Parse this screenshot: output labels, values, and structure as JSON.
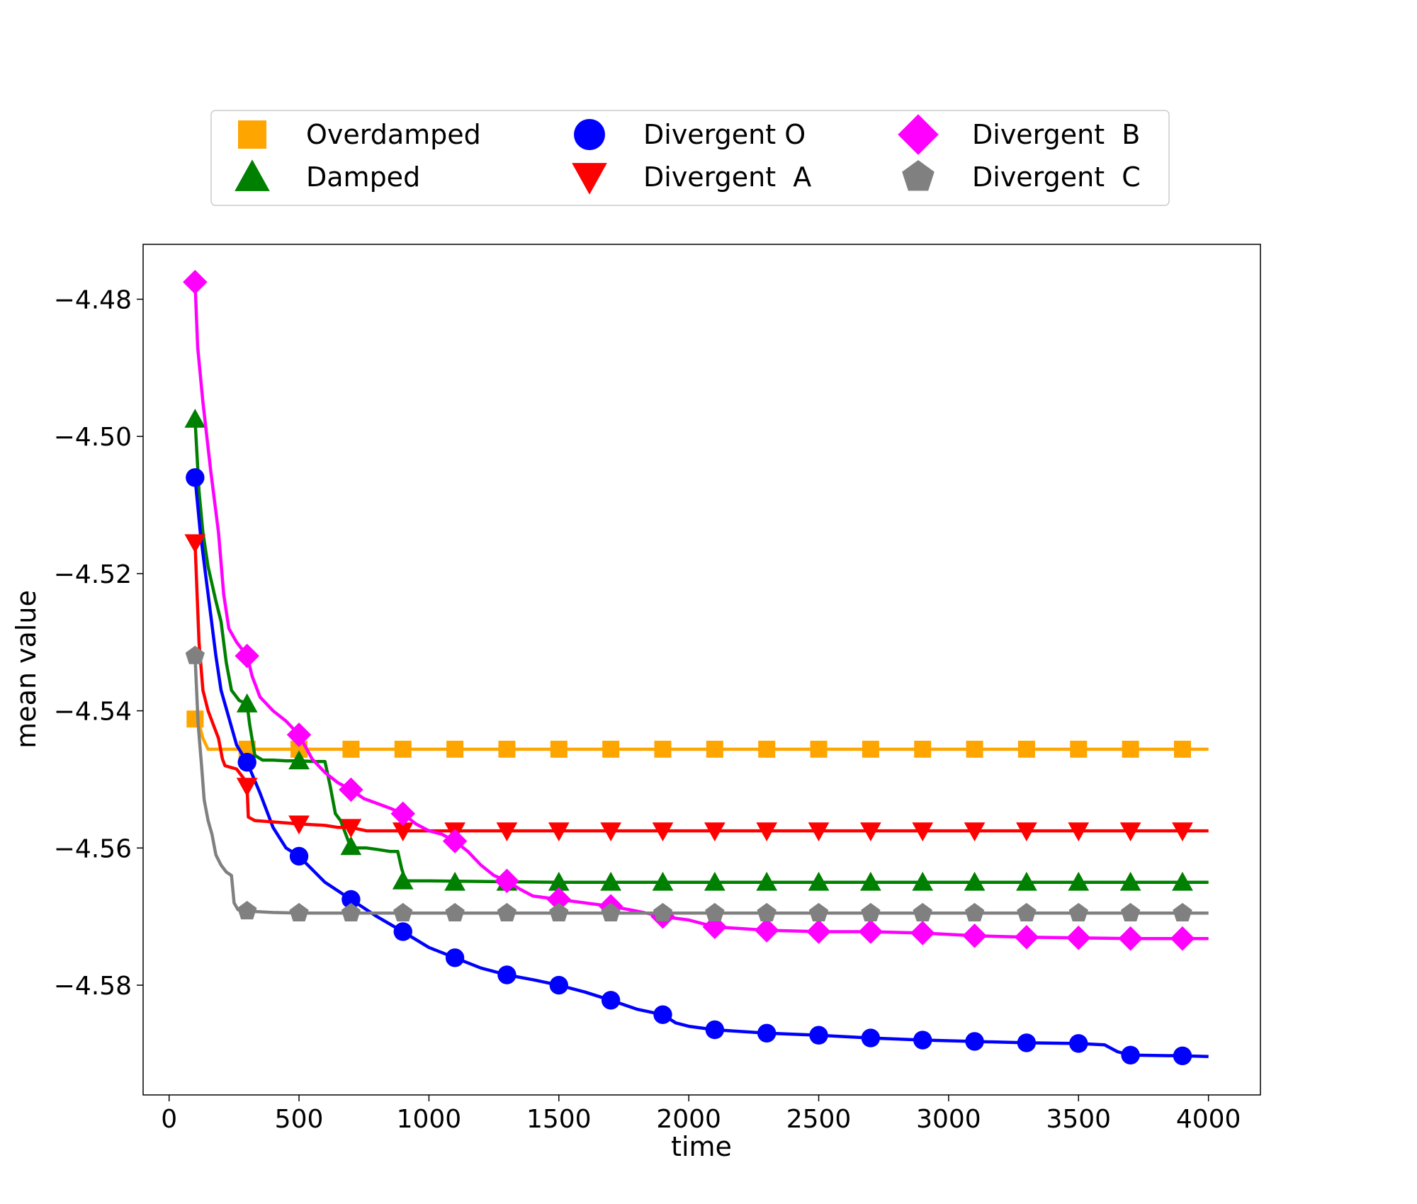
{
  "chart_data": {
    "type": "line",
    "title": "",
    "xlabel": "time",
    "ylabel": "mean value",
    "xlim": [
      -100,
      4200
    ],
    "ylim": [
      -4.596,
      -4.472
    ],
    "xticks": [
      0,
      500,
      1000,
      1500,
      2000,
      2500,
      3000,
      3500,
      4000
    ],
    "xtick_labels": [
      "0",
      "500",
      "1000",
      "1500",
      "2000",
      "2500",
      "3000",
      "3500",
      "4000"
    ],
    "yticks": [
      -4.48,
      -4.5,
      -4.52,
      -4.54,
      -4.56,
      -4.58
    ],
    "ytick_labels": [
      "−4.48",
      "−4.50",
      "−4.52",
      "−4.54",
      "−4.56",
      "−4.58"
    ],
    "grid": false,
    "legend_position": "top-center",
    "marker_x": [
      100,
      300,
      500,
      700,
      900,
      1100,
      1300,
      1500,
      1700,
      1900,
      2100,
      2300,
      2500,
      2700,
      2900,
      3100,
      3300,
      3500,
      3700,
      3900
    ],
    "series": [
      {
        "name": "Overdamped",
        "color": "#FFA500",
        "marker": "square",
        "x": [
          100,
          110,
          130,
          150,
          4000
        ],
        "y": [
          -4.5412,
          -4.5412,
          -4.544,
          -4.5456,
          -4.5456
        ],
        "marker_y": [
          -4.5412,
          -4.5456,
          -4.5456,
          -4.5456,
          -4.5456,
          -4.5456,
          -4.5456,
          -4.5456,
          -4.5456,
          -4.5456,
          -4.5456,
          -4.5456,
          -4.5456,
          -4.5456,
          -4.5456,
          -4.5456,
          -4.5456,
          -4.5456,
          -4.5456,
          -4.5456
        ]
      },
      {
        "name": "Damped",
        "color": "#008000",
        "marker": "triangle-up",
        "x": [
          100,
          115,
          130,
          150,
          180,
          200,
          220,
          240,
          270,
          300,
          310,
          330,
          360,
          400,
          450,
          500,
          560,
          600,
          620,
          640,
          660,
          690,
          700,
          720,
          760,
          800,
          850,
          880,
          895,
          910,
          1000,
          1500,
          2000,
          4000
        ],
        "y": [
          -4.4975,
          -4.508,
          -4.514,
          -4.519,
          -4.524,
          -4.527,
          -4.533,
          -4.537,
          -4.5385,
          -4.539,
          -4.542,
          -4.5465,
          -4.5472,
          -4.5472,
          -4.5473,
          -4.5473,
          -4.5474,
          -4.5474,
          -4.551,
          -4.555,
          -4.556,
          -4.559,
          -4.5598,
          -4.56,
          -4.56,
          -4.5602,
          -4.5605,
          -4.5605,
          -4.563,
          -4.5648,
          -4.5648,
          -4.565,
          -4.565,
          -4.565
        ],
        "marker_y": [
          -4.4975,
          -4.539,
          -4.5473,
          -4.5598,
          -4.5648,
          -4.565,
          -4.565,
          -4.565,
          -4.565,
          -4.565,
          -4.565,
          -4.565,
          -4.565,
          -4.565,
          -4.565,
          -4.565,
          -4.565,
          -4.565,
          -4.565,
          -4.565
        ]
      },
      {
        "name": "Divergent O",
        "color": "#0000FF",
        "marker": "circle",
        "x": [
          100,
          120,
          140,
          160,
          180,
          200,
          230,
          260,
          300,
          350,
          400,
          450,
          500,
          600,
          700,
          800,
          900,
          1000,
          1100,
          1200,
          1300,
          1400,
          1500,
          1600,
          1700,
          1800,
          1900,
          1950,
          2000,
          2100,
          2300,
          2500,
          2700,
          2900,
          3100,
          3300,
          3500,
          3600,
          3650,
          3700,
          3900,
          4000
        ],
        "y": [
          -4.506,
          -4.514,
          -4.52,
          -4.526,
          -4.532,
          -4.537,
          -4.541,
          -4.545,
          -4.5475,
          -4.552,
          -4.557,
          -4.56,
          -4.5612,
          -4.565,
          -4.5675,
          -4.57,
          -4.5722,
          -4.5745,
          -4.576,
          -4.5775,
          -4.5785,
          -4.5792,
          -4.58,
          -4.581,
          -4.5822,
          -4.5835,
          -4.5843,
          -4.5855,
          -4.586,
          -4.5865,
          -4.587,
          -4.5873,
          -4.5877,
          -4.588,
          -4.5882,
          -4.5884,
          -4.5885,
          -4.5887,
          -4.5897,
          -4.5902,
          -4.5903,
          -4.5904
        ],
        "marker_y": [
          -4.506,
          -4.5475,
          -4.5612,
          -4.5675,
          -4.5722,
          -4.576,
          -4.5785,
          -4.58,
          -4.5822,
          -4.5843,
          -4.5865,
          -4.587,
          -4.5873,
          -4.5877,
          -4.588,
          -4.5882,
          -4.5884,
          -4.5885,
          -4.5902,
          -4.5903
        ]
      },
      {
        "name": "Divergent  A",
        "color": "#FF0000",
        "marker": "triangle-down",
        "x": [
          100,
          115,
          130,
          150,
          170,
          190,
          205,
          215,
          260,
          290,
          300,
          305,
          330,
          400,
          500,
          600,
          650,
          700,
          760,
          800,
          900,
          1000,
          2000,
          4000
        ],
        "y": [
          -4.5155,
          -4.53,
          -4.537,
          -4.54,
          -4.542,
          -4.544,
          -4.547,
          -4.548,
          -4.5485,
          -4.55,
          -4.551,
          -4.5555,
          -4.556,
          -4.5562,
          -4.5565,
          -4.5567,
          -4.557,
          -4.557,
          -4.5575,
          -4.5575,
          -4.5575,
          -4.5575,
          -4.5575,
          -4.5575
        ],
        "marker_y": [
          -4.5155,
          -4.551,
          -4.5565,
          -4.557,
          -4.5575,
          -4.5575,
          -4.5575,
          -4.5575,
          -4.5575,
          -4.5575,
          -4.5575,
          -4.5575,
          -4.5575,
          -4.5575,
          -4.5575,
          -4.5575,
          -4.5575,
          -4.5575,
          -4.5575,
          -4.5575
        ]
      },
      {
        "name": "Divergent  B",
        "color": "#FF00FF",
        "marker": "diamond",
        "x": [
          100,
          110,
          130,
          160,
          190,
          210,
          230,
          260,
          300,
          320,
          350,
          400,
          450,
          500,
          550,
          600,
          650,
          700,
          750,
          800,
          850,
          900,
          950,
          1000,
          1050,
          1100,
          1150,
          1200,
          1250,
          1300,
          1350,
          1400,
          1500,
          1600,
          1700,
          1800,
          1900,
          2000,
          2100,
          2300,
          2500,
          2700,
          2900,
          3100,
          3300,
          3500,
          3700,
          3900,
          4000
        ],
        "y": [
          -4.4775,
          -4.487,
          -4.495,
          -4.505,
          -4.514,
          -4.523,
          -4.528,
          -4.53,
          -4.532,
          -4.535,
          -4.538,
          -4.54,
          -4.5415,
          -4.5435,
          -4.547,
          -4.549,
          -4.5505,
          -4.5515,
          -4.5528,
          -4.5535,
          -4.5542,
          -4.555,
          -4.5565,
          -4.5575,
          -4.558,
          -4.559,
          -4.5605,
          -4.5625,
          -4.564,
          -4.5648,
          -4.566,
          -4.567,
          -4.5675,
          -4.568,
          -4.5685,
          -4.5692,
          -4.57,
          -4.5705,
          -4.5715,
          -4.572,
          -4.5722,
          -4.5722,
          -4.5724,
          -4.5728,
          -4.573,
          -4.5731,
          -4.5732,
          -4.5732,
          -4.5732
        ],
        "marker_y": [
          -4.4775,
          -4.532,
          -4.5435,
          -4.5515,
          -4.555,
          -4.559,
          -4.5648,
          -4.5675,
          -4.5685,
          -4.57,
          -4.5715,
          -4.572,
          -4.5722,
          -4.5722,
          -4.5724,
          -4.5728,
          -4.573,
          -4.5731,
          -4.5732,
          -4.5732
        ]
      },
      {
        "name": "Divergent  C",
        "color": "#808080",
        "marker": "pentagon",
        "x": [
          100,
          112,
          125,
          135,
          150,
          165,
          180,
          200,
          220,
          240,
          250,
          265,
          300,
          400,
          500,
          1000,
          2000,
          4000
        ],
        "y": [
          -4.532,
          -4.542,
          -4.548,
          -4.553,
          -4.556,
          -4.558,
          -4.561,
          -4.5625,
          -4.5635,
          -4.564,
          -4.568,
          -4.569,
          -4.5692,
          -4.5694,
          -4.5695,
          -4.5695,
          -4.5695,
          -4.5695
        ],
        "marker_y": [
          -4.532,
          -4.5692,
          -4.5695,
          -4.5695,
          -4.5695,
          -4.5695,
          -4.5695,
          -4.5695,
          -4.5695,
          -4.5695,
          -4.5695,
          -4.5695,
          -4.5695,
          -4.5695,
          -4.5695,
          -4.5695,
          -4.5695,
          -4.5695,
          -4.5695,
          -4.5695
        ]
      }
    ]
  }
}
